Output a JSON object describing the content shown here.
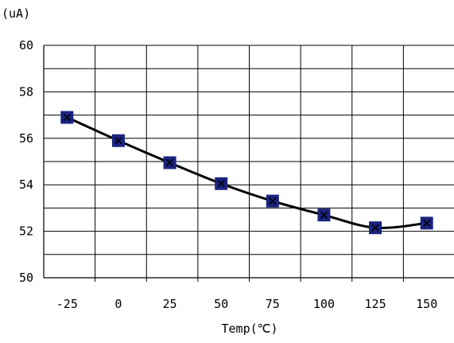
{
  "chart_data": {
    "type": "line",
    "x": [
      -25,
      0,
      25,
      50,
      75,
      100,
      125,
      150
    ],
    "series": [
      {
        "values": [
          56.9,
          55.9,
          54.95,
          54.05,
          53.3,
          52.7,
          52.15,
          52.35
        ]
      }
    ],
    "xlabel": "Temp(℃)",
    "ylabel": "(uA)",
    "x_ticks": [
      "-25",
      "0",
      "25",
      "50",
      "75",
      "100",
      "125",
      "150"
    ],
    "y_ticks": [
      "50",
      "52",
      "54",
      "56",
      "58",
      "60"
    ],
    "ylim": [
      50,
      60
    ],
    "grid": true,
    "legend": "none",
    "colors": {
      "line": "#000000",
      "marker_fill": "#1a237e",
      "marker_cross": "#000000",
      "grid": "#000000"
    }
  }
}
